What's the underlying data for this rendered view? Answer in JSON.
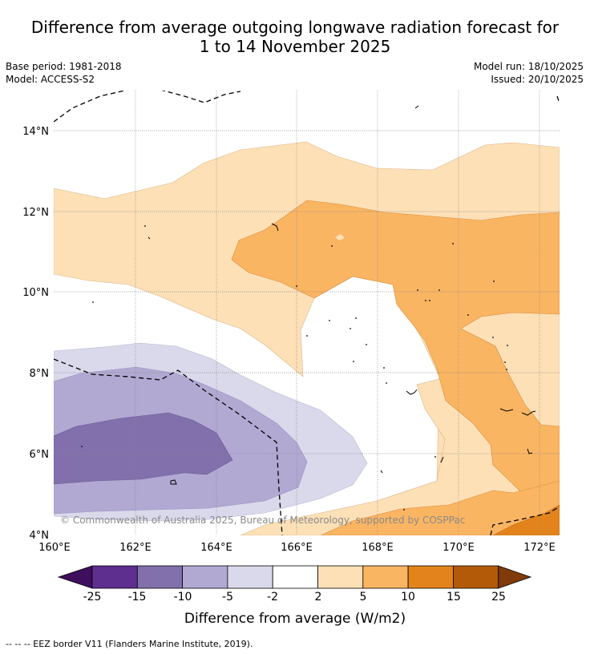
{
  "title": {
    "line1": "Difference from average outgoing longwave radiation forecast for",
    "line2": "1 to 14 November 2025"
  },
  "meta": {
    "base_period": "Base period: 1981-2018",
    "model": "Model: ACCESS-S2",
    "model_run": "Model run: 18/10/2025",
    "issued": "Issued: 20/10/2025"
  },
  "map": {
    "lat_labels": [
      "14°N",
      "12°N",
      "10°N",
      "8°N",
      "6°N",
      "4°N"
    ],
    "lon_labels": [
      "160°E",
      "162°E",
      "164°E",
      "166°E",
      "168°E",
      "170°E",
      "172°E"
    ],
    "copyright": "© Commonwealth of Australia 2025, Bureau of Meteorology, supported by COSPPac"
  },
  "colorbar": {
    "ticks": [
      "-25",
      "-15",
      "-10",
      "-5",
      "-2",
      "2",
      "5",
      "10",
      "15",
      "25"
    ],
    "colors": [
      "#3f0f5e",
      "#5e2f8e",
      "#8170ac",
      "#b1a9d2",
      "#d9d9eb",
      "#ffffff",
      "#fde0b6",
      "#fab563",
      "#e2841b",
      "#b35a09",
      "#7f3b08"
    ],
    "label": "Difference from average (W/m2)"
  },
  "footnote": "-- -- -- EEZ border V11 (Flanders Marine Institute, 2019)."
}
